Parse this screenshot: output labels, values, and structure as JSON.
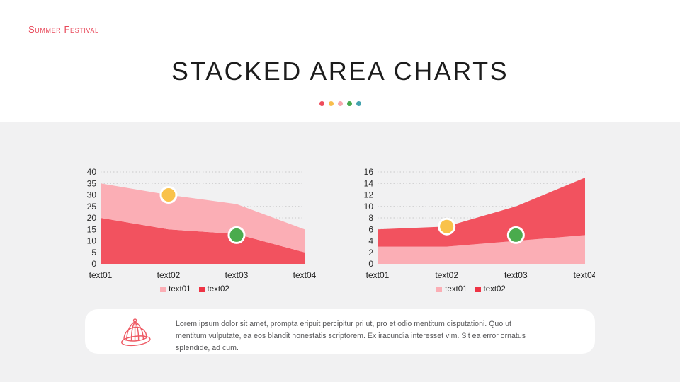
{
  "header": {
    "eyebrow": "Summer Festival",
    "title": "STACKED AREA CHARTS"
  },
  "decoration": {
    "dot_colors": [
      "#EE4C5C",
      "#F8BE4B",
      "#F7A6AE",
      "#47A94F",
      "#44A3AE"
    ]
  },
  "colors": {
    "background_top": "#FFFFFF",
    "background_bottom": "#F1F1F2",
    "accent_red": "#E8495A",
    "area_pink": "#FBAEB5",
    "area_red": "#F2525F",
    "marker_yellow": "#F9C24A",
    "marker_green": "#4AAB4D",
    "gridline": "#C9C9C9"
  },
  "chart_data": [
    {
      "type": "area",
      "stacked": true,
      "grid": "dotted-horizontal",
      "categories": [
        "text01",
        "text02",
        "text03",
        "text04"
      ],
      "ylim": [
        0,
        40
      ],
      "y_step": 5,
      "series": [
        {
          "name": "text02",
          "color": "#F2525F",
          "values": [
            20,
            15,
            13,
            5
          ]
        },
        {
          "name": "text01",
          "color": "#FBAEB5",
          "values": [
            15,
            15,
            13,
            10
          ]
        }
      ],
      "stacked_totals": [
        35,
        30,
        26,
        15
      ],
      "legend": [
        {
          "label": "text01",
          "color": "#FBAEB5"
        },
        {
          "label": "text02",
          "color": "#EE3344"
        }
      ],
      "legend_position": "bottom-center",
      "markers": [
        {
          "category": "text02",
          "category_index": 1,
          "value": 30,
          "color": "#F9C24A"
        },
        {
          "category": "text03",
          "category_index": 2,
          "value": 12.5,
          "color": "#4AAB4D"
        }
      ]
    },
    {
      "type": "area",
      "stacked": true,
      "grid": "dotted-horizontal",
      "categories": [
        "text01",
        "text02",
        "text03",
        "text04"
      ],
      "ylim": [
        0,
        16
      ],
      "y_step": 2,
      "series": [
        {
          "name": "text01",
          "color": "#FBAEB5",
          "values": [
            3,
            3,
            4,
            5
          ]
        },
        {
          "name": "text02",
          "color": "#F2525F",
          "values": [
            3,
            3.5,
            6,
            10
          ]
        }
      ],
      "stacked_totals": [
        6,
        6.5,
        10,
        15
      ],
      "legend": [
        {
          "label": "text01",
          "color": "#FBAEB5"
        },
        {
          "label": "text02",
          "color": "#EE3344"
        }
      ],
      "legend_position": "bottom-center",
      "markers": [
        {
          "category": "text02",
          "category_index": 1,
          "value": 6.5,
          "color": "#F9C24A"
        },
        {
          "category": "text03",
          "category_index": 2,
          "value": 5,
          "color": "#4AAB4D"
        }
      ]
    }
  ],
  "footer": {
    "icon": "summer-hat-icon",
    "text": "Lorem ipsum dolor sit amet, prompta eripuit percipitur pri ut, pro et odio mentitum disputationi. Quo ut mentitum vulputate, ea eos blandit honestatis scriptorem. Ex iracundia interesset vim. Sit ea error ornatus splendide, ad cum."
  }
}
